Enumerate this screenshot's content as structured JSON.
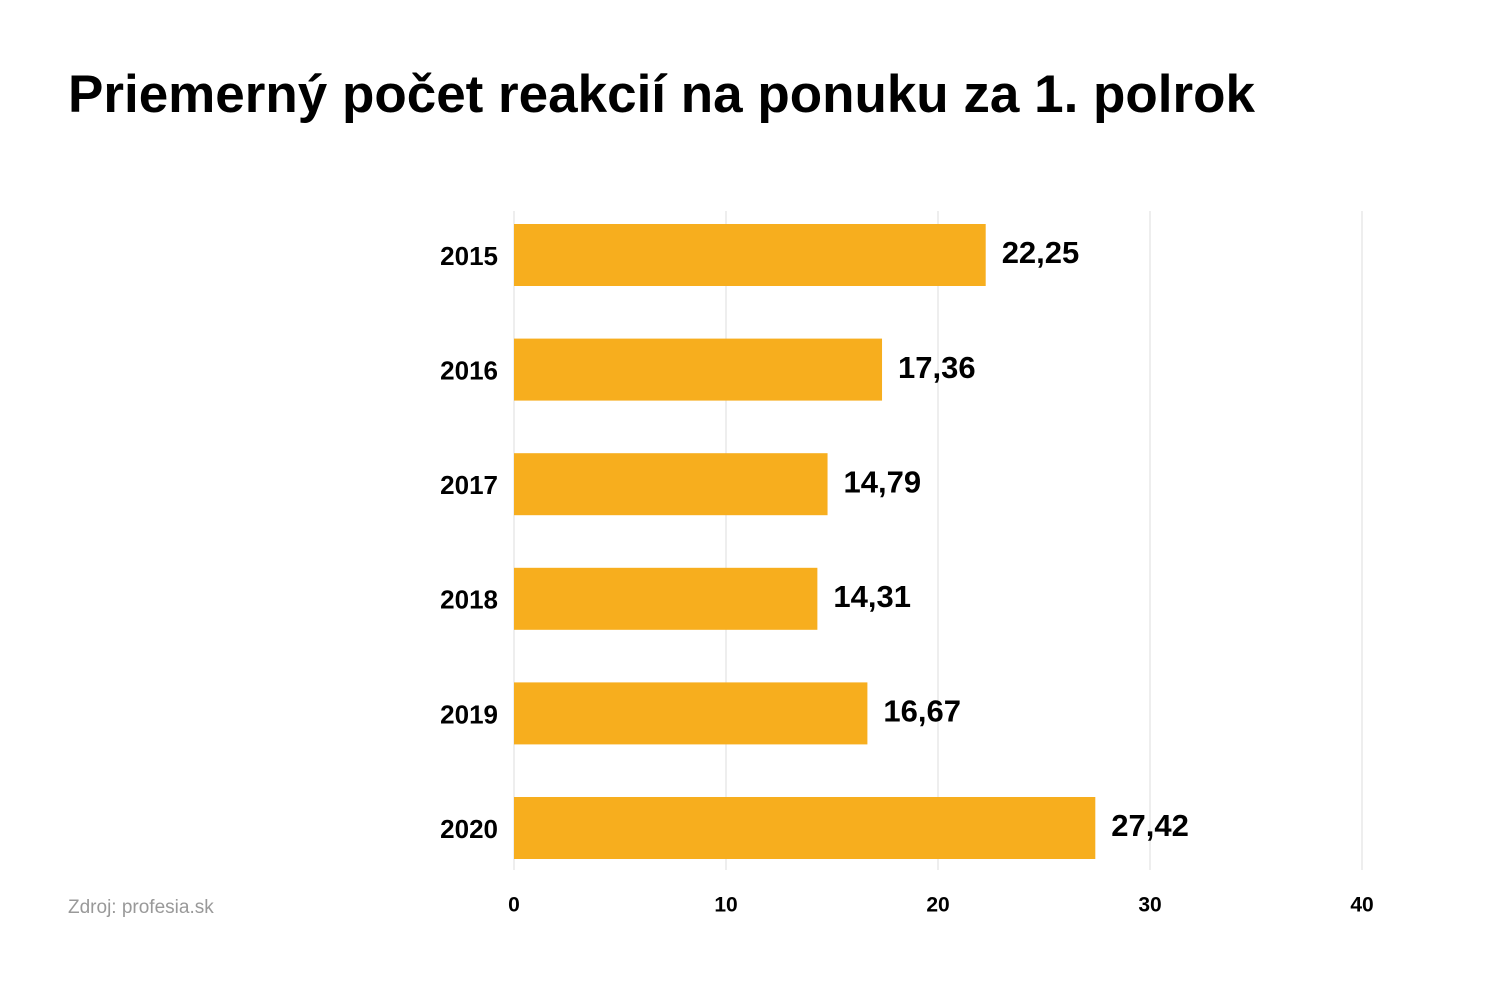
{
  "chart_data": {
    "type": "hbar",
    "title": "Priemerný počet reakcií na ponuku za 1. polrok",
    "source": "Zdroj: profesia.sk",
    "categories": [
      "2015",
      "2016",
      "2017",
      "2018",
      "2019",
      "2020"
    ],
    "values": [
      22.25,
      17.36,
      14.79,
      14.31,
      16.67,
      27.42
    ],
    "value_labels": [
      "22,25",
      "17,36",
      "14,79",
      "14,31",
      "16,67",
      "27,42"
    ],
    "color": "#f7ae1e",
    "xlim": [
      0,
      40
    ],
    "xticks": [
      0,
      10,
      20,
      30,
      40
    ],
    "grid": true
  }
}
